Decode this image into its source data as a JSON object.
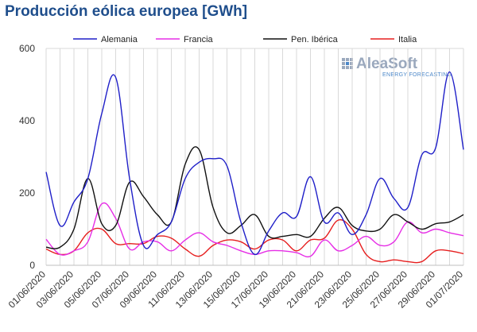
{
  "logo": {
    "name": "AleaSoft",
    "tagline": "ENERGY FORECASTING"
  },
  "chart_data": {
    "type": "line",
    "title": "Producción eólica europea [GWh]",
    "xlabel": "",
    "ylabel": "",
    "ylim": [
      0,
      600
    ],
    "yticks": [
      0,
      200,
      400,
      600
    ],
    "grid": {
      "vertical": true,
      "horizontal": false
    },
    "legend_position": "top",
    "x": [
      "01/06/2020",
      "02/06/2020",
      "03/06/2020",
      "04/06/2020",
      "05/06/2020",
      "06/06/2020",
      "07/06/2020",
      "08/06/2020",
      "09/06/2020",
      "10/06/2020",
      "11/06/2020",
      "12/06/2020",
      "13/06/2020",
      "14/06/2020",
      "15/06/2020",
      "16/06/2020",
      "17/06/2020",
      "18/06/2020",
      "19/06/2020",
      "20/06/2020",
      "21/06/2020",
      "22/06/2020",
      "23/06/2020",
      "24/06/2020",
      "25/06/2020",
      "26/06/2020",
      "27/06/2020",
      "28/06/2020",
      "29/06/2020",
      "30/06/2020",
      "01/07/2020"
    ],
    "x_tick_labels": [
      "01/06/2020",
      "03/06/2020",
      "05/06/2020",
      "07/06/2020",
      "09/06/2020",
      "11/06/2020",
      "13/06/2020",
      "15/06/2020",
      "17/06/2020",
      "19/06/2020",
      "21/06/2020",
      "23/06/2020",
      "25/06/2020",
      "27/06/2020",
      "29/06/2020",
      "01/07/2020"
    ],
    "series": [
      {
        "name": "Alemania",
        "color": "#1f1fc8",
        "values": [
          258,
          110,
          175,
          240,
          420,
          520,
          240,
          55,
          85,
          120,
          240,
          285,
          295,
          275,
          120,
          30,
          95,
          145,
          135,
          245,
          120,
          145,
          85,
          140,
          240,
          185,
          160,
          305,
          325,
          535,
          320
        ]
      },
      {
        "name": "Francia",
        "color": "#e62ee6",
        "values": [
          72,
          30,
          40,
          65,
          170,
          130,
          45,
          65,
          65,
          40,
          70,
          90,
          65,
          55,
          40,
          30,
          40,
          40,
          35,
          25,
          70,
          40,
          55,
          80,
          55,
          65,
          120,
          90,
          100,
          90,
          82
        ]
      },
      {
        "name": "Pen. Ibérica",
        "color": "#111111",
        "values": [
          50,
          50,
          100,
          240,
          115,
          110,
          230,
          190,
          140,
          120,
          280,
          320,
          160,
          90,
          110,
          140,
          80,
          80,
          85,
          80,
          130,
          160,
          110,
          95,
          100,
          140,
          120,
          100,
          115,
          120,
          140
        ]
      },
      {
        "name": "Italia",
        "color": "#e61e1e",
        "values": [
          45,
          30,
          40,
          90,
          100,
          60,
          60,
          60,
          80,
          75,
          45,
          25,
          55,
          70,
          65,
          45,
          70,
          70,
          40,
          70,
          75,
          125,
          100,
          30,
          10,
          15,
          10,
          10,
          40,
          40,
          32
        ]
      }
    ]
  }
}
